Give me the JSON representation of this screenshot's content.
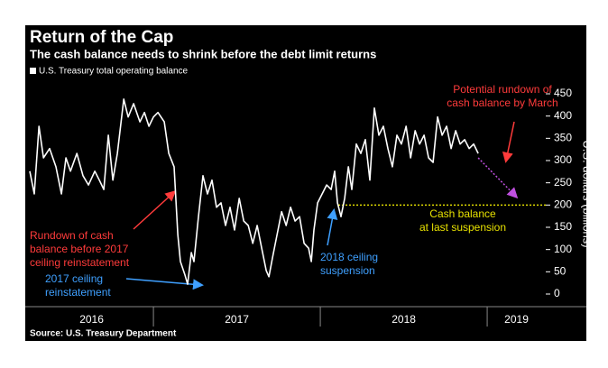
{
  "chart_data": {
    "type": "line",
    "title": "Return of the Cap",
    "subtitle": "The cash balance needs to shrink before the debt limit returns",
    "source": "Source: U.S. Treasury Department",
    "y_axis_label": "U.S. dollars (billions)",
    "xlim": [
      2016.259,
      2019.351
    ],
    "xticks": [
      {
        "value": 2016,
        "label": "2016"
      },
      {
        "value": 2017,
        "label": "2017"
      },
      {
        "value": 2018,
        "label": "2018"
      },
      {
        "value": 2019,
        "label": "2019"
      }
    ],
    "ylim": [
      0,
      450
    ],
    "yticks": [
      0,
      50,
      100,
      150,
      200,
      250,
      300,
      350,
      400,
      450
    ],
    "legend": "top-left",
    "series": [
      {
        "name": "U.S. Treasury total operating balance",
        "color": "#ffffff",
        "x": [
          2016.259,
          2016.286,
          2016.314,
          2016.341,
          2016.378,
          2016.416,
          2016.449,
          2016.476,
          2016.503,
          2016.541,
          2016.578,
          2016.611,
          2016.649,
          2016.676,
          2016.703,
          2016.73,
          2016.757,
          2016.784,
          2016.822,
          2016.849,
          2016.881,
          2016.919,
          2016.946,
          2016.973,
          2017.0,
          2017.027,
          2017.065,
          2017.092,
          2017.124,
          2017.146,
          2017.162,
          2017.189,
          2017.205,
          2017.227,
          2017.243,
          2017.27,
          2017.297,
          2017.324,
          2017.351,
          2017.378,
          2017.405,
          2017.432,
          2017.459,
          2017.486,
          2017.514,
          2017.541,
          2017.568,
          2017.595,
          2017.622,
          2017.649,
          2017.676,
          2017.692,
          2017.714,
          2017.741,
          2017.768,
          2017.795,
          2017.822,
          2017.849,
          2017.876,
          2017.903,
          2017.93,
          2017.946,
          2017.962,
          2017.984,
          2018.011,
          2018.038,
          2018.065,
          2018.086,
          2018.103,
          2018.124,
          2018.146,
          2018.168,
          2018.189,
          2018.216,
          2018.243,
          2018.27,
          2018.297,
          2018.324,
          2018.351,
          2018.378,
          2018.405,
          2018.432,
          2018.459,
          2018.486,
          2018.514,
          2018.541,
          2018.568,
          2018.595,
          2018.622,
          2018.649,
          2018.676,
          2018.703,
          2018.73,
          2018.757,
          2018.784,
          2018.811,
          2018.838,
          2018.865,
          2018.892,
          2018.919,
          2018.946
        ],
        "values": [
          276,
          225,
          377,
          306,
          327,
          286,
          225,
          306,
          276,
          316,
          266,
          245,
          276,
          256,
          235,
          357,
          256,
          316,
          438,
          398,
          428,
          387,
          408,
          377,
          398,
          408,
          387,
          316,
          286,
          134,
          73,
          43,
          22,
          93,
          73,
          174,
          266,
          225,
          256,
          195,
          205,
          154,
          195,
          144,
          215,
          164,
          154,
          114,
          154,
          103,
          53,
          39,
          83,
          134,
          185,
          154,
          195,
          164,
          174,
          114,
          103,
          73,
          144,
          205,
          225,
          245,
          235,
          276,
          205,
          174,
          215,
          286,
          235,
          337,
          316,
          347,
          256,
          418,
          357,
          377,
          327,
          286,
          357,
          337,
          377,
          306,
          367,
          337,
          357,
          306,
          296,
          398,
          357,
          377,
          327,
          367,
          337,
          347,
          327,
          337,
          316
        ]
      }
    ],
    "projection": {
      "color": "#c050e0",
      "x": [
        2018.946,
        2019.173
      ],
      "values": [
        306,
        219
      ]
    },
    "reference_line": {
      "value": 200,
      "x_start": 2018.108,
      "color": "#e6e000"
    },
    "annotations": [
      {
        "lines": [
          "Potential rundown of",
          "cash balance by March"
        ],
        "color": "#ff3b3b"
      },
      {
        "lines": [
          "Cash balance",
          "at last suspension"
        ],
        "color": "#e6e000"
      },
      {
        "lines": [
          "Rundown of cash",
          "balance before 2017",
          "ceiling reinstatement"
        ],
        "color": "#ff3b3b"
      },
      {
        "lines": [
          "2017 ceiling",
          "reinstatement"
        ],
        "color": "#3fa0ff"
      },
      {
        "lines": [
          "2018 ceiling",
          "suspension"
        ],
        "color": "#3fa0ff"
      }
    ]
  }
}
